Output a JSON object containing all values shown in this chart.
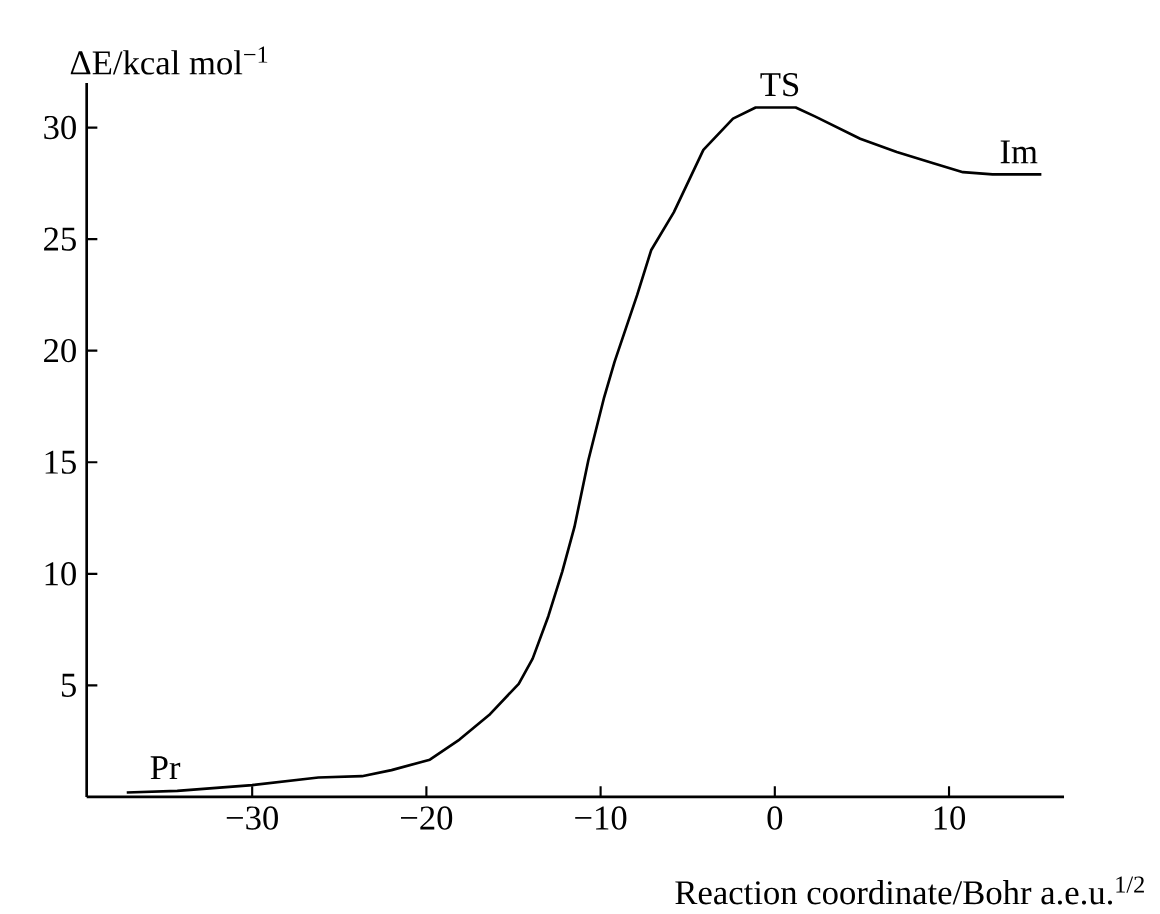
{
  "chart_data": {
    "type": "line",
    "xlabel": "Reaction coordinate/Bohr a.e.u.$^{1/2}$",
    "ylabel": "ΔE/kcal mol$^{−1}$",
    "xlim": [
      -39.5,
      16.6
    ],
    "ylim": [
      0,
      32
    ],
    "xticks": [
      {
        "value": -30,
        "label": "−30"
      },
      {
        "value": -20,
        "label": "−20"
      },
      {
        "value": -10,
        "label": "−10"
      },
      0,
      10
    ],
    "yticks": [
      5,
      10,
      15,
      20,
      25,
      30
    ],
    "grid": false,
    "marker": "none",
    "line_style": "solid",
    "series": [
      {
        "color": "#000000",
        "x": [
          -37.2,
          -34.3,
          -30,
          -26.2,
          -23.7,
          -22,
          -19.8,
          -18.1,
          -16.4,
          -14.7,
          -13.9,
          -13,
          -12.2,
          -11.5,
          -10.7,
          -9.8,
          -9.2,
          -7.9,
          -7.1,
          -5.8,
          -4.1,
          -2.4,
          -1.1,
          1.2,
          2.3,
          4.9,
          7,
          9.1,
          10.8,
          12.5,
          15.3
        ],
        "values": [
          0.2,
          0.27,
          0.53,
          0.87,
          0.93,
          1.2,
          1.67,
          2.57,
          3.67,
          5.07,
          6.2,
          8.1,
          10.1,
          12.1,
          15.1,
          17.9,
          19.5,
          22.5,
          24.5,
          26.2,
          29.0,
          30.4,
          30.9,
          30.9,
          30.5,
          29.5,
          28.9,
          28.4,
          28.0,
          27.9,
          27.9
        ]
      }
    ],
    "annotations": [
      {
        "text": "Pr",
        "x": -35,
        "y": 0.3
      },
      {
        "text": "TS",
        "x": 0.3,
        "y": 30.9
      },
      {
        "text": "Im",
        "x": 14,
        "y": 27.9
      }
    ]
  }
}
